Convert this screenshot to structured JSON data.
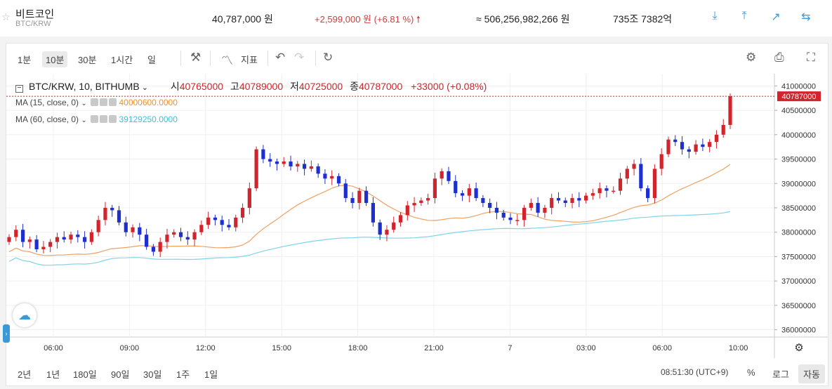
{
  "header": {
    "coin_name": "비트코인",
    "pair": "BTC/KRW",
    "price": "40,787,000 원",
    "change": "+2,599,000 원 (+6.81 %)",
    "change_arrow": "🠕",
    "volume": "≈ 506,256,982,266 원",
    "market_cap": "735조 7382억",
    "icons": [
      "download-icon",
      "upload-icon",
      "trend-icon",
      "swap-icon"
    ]
  },
  "toolbar": {
    "intervals": [
      "1분",
      "10분",
      "30분",
      "1시간",
      "일"
    ],
    "active_interval": "10분",
    "indicator_label": "지표"
  },
  "legend": {
    "symbol": "BTC/KRW, 10, BITHUMB",
    "open_label": "시",
    "open": "40765000",
    "high_label": "고",
    "high": "40789000",
    "low_label": "저",
    "low": "40725000",
    "close_label": "종",
    "close": "40787000",
    "change": "+33000 (+0.08%)"
  },
  "ma": [
    {
      "label": "MA (15, close, 0)",
      "value": "40000600.0000",
      "color": "#f09030"
    },
    {
      "label": "MA (60, close, 0)",
      "value": "39129250.0000",
      "color": "#40c0d8"
    }
  ],
  "bottom": {
    "ranges": [
      "2년",
      "1년",
      "180일",
      "90일",
      "30일",
      "1주",
      "1일"
    ],
    "clock": "08:51:30 (UTC+9)",
    "percent": "%",
    "log": "로그",
    "auto": "자동"
  },
  "colors": {
    "up": "#d1242c",
    "down": "#1e2fd0",
    "ma15": "#f0a060",
    "ma60": "#7fd4e8"
  },
  "chart_data": {
    "type": "candlestick",
    "xlabel": "",
    "ylabel": "",
    "ylim": [
      35850000,
      41250000
    ],
    "y_ticks": [
      "41000000",
      "40500000",
      "40000000",
      "39500000",
      "39000000",
      "38500000",
      "38000000",
      "37500000",
      "37000000",
      "36500000",
      "36000000"
    ],
    "x_tick_labels": [
      "06:00",
      "09:00",
      "12:00",
      "15:00",
      "18:00",
      "21:00",
      "7",
      "03:00",
      "06:00",
      "10:00"
    ],
    "last_price_label": "40787000",
    "close_series": [
      37900,
      38050,
      37800,
      37850,
      37650,
      37700,
      37800,
      37900,
      37850,
      37950,
      37900,
      37800,
      38000,
      38250,
      38500,
      38450,
      38200,
      38000,
      38100,
      37950,
      37700,
      37600,
      37800,
      37950,
      38000,
      37900,
      37850,
      38000,
      38150,
      38300,
      38250,
      38150,
      38100,
      38300,
      38500,
      38900,
      39700,
      39500,
      39450,
      39400,
      39450,
      39350,
      39400,
      39300,
      39350,
      39200,
      39100,
      39150,
      39000,
      38700,
      38600,
      38850,
      38600,
      38200,
      37950,
      38050,
      38200,
      38350,
      38550,
      38600,
      38650,
      38700,
      39100,
      39250,
      39050,
      38800,
      38750,
      38900,
      38700,
      38600,
      38500,
      38400,
      38300,
      38250,
      38250,
      38500,
      38600,
      38400,
      38500,
      38700,
      38650,
      38600,
      38700,
      38650,
      38750,
      38800,
      38900,
      38850,
      38850,
      39100,
      39300,
      39400,
      38900,
      38700,
      39300,
      39600,
      39900,
      39850,
      39700,
      39650,
      39800,
      39750,
      39850,
      40000,
      40200,
      40787
    ]
  }
}
